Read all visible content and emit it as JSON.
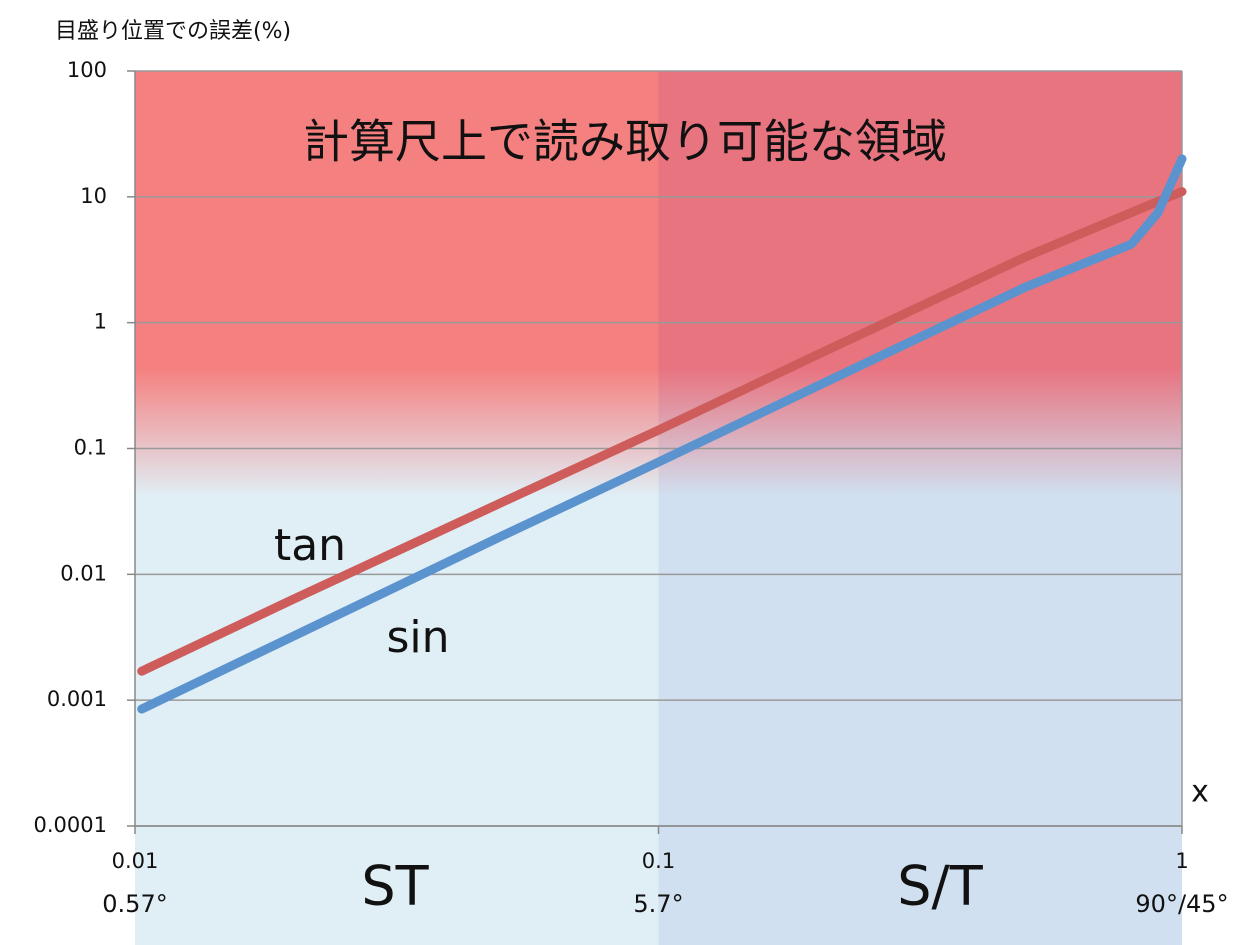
{
  "chart_data": {
    "type": "line",
    "y_axis_title": "目盛り位置での誤差(%)",
    "annotation": "計算尺上で読み取り可能な領域",
    "x_axis_title": "x",
    "region_labels": [
      "ST",
      "S/T"
    ],
    "xscale": "log",
    "yscale": "log",
    "xlim": [
      0.01,
      1
    ],
    "ylim": [
      0.0001,
      100
    ],
    "xticks": [
      0.01,
      0.1,
      1
    ],
    "xtick_angles": [
      "0.57°",
      "5.7°",
      "90°/45°"
    ],
    "yticks": [
      0.0001,
      0.001,
      0.01,
      0.1,
      1,
      10,
      100
    ],
    "grid": true,
    "x": [
      0.0103,
      0.02,
      0.05,
      0.1,
      0.2,
      0.5,
      0.8,
      0.9,
      1
    ],
    "series": [
      {
        "name": "tan",
        "color": "#cd5c5a",
        "values": [
          0.0017,
          0.0063,
          0.037,
          0.14,
          0.55,
          3.3,
          7.5,
          9.2,
          11
        ]
      },
      {
        "name": "sin",
        "color": "#5b93cf",
        "values": [
          0.00085,
          0.0032,
          0.02,
          0.078,
          0.31,
          1.9,
          4.2,
          7.5,
          20
        ]
      }
    ]
  }
}
